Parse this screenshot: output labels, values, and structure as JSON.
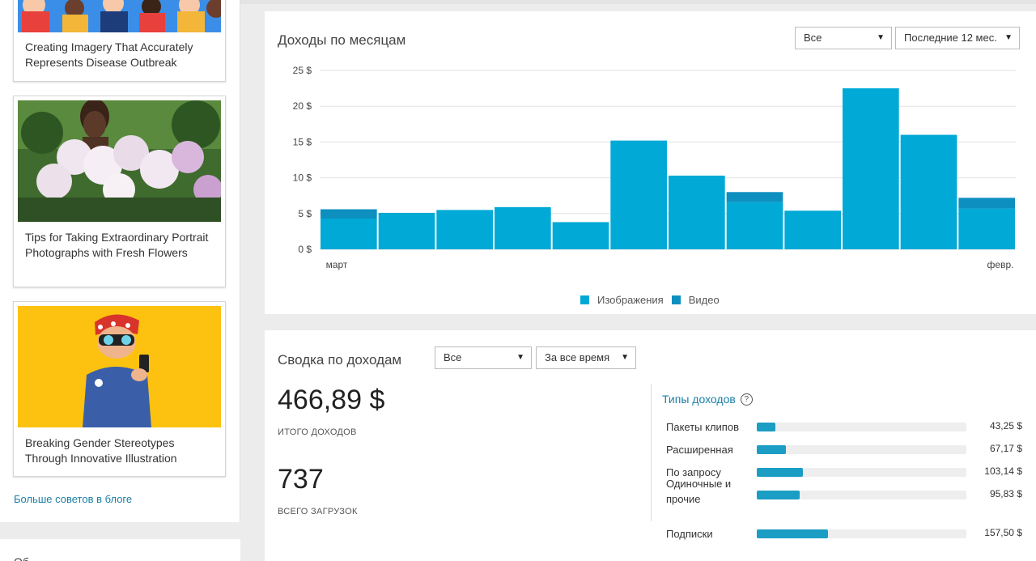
{
  "blog": {
    "cards": [
      {
        "title": "Creating Imagery That Accurately Represents Disease Outbreak"
      },
      {
        "title": "Tips for Taking Extraordinary Portrait Photographs with Fresh Flowers"
      },
      {
        "title": "Breaking Gender Stereotypes Through Innovative Illustration"
      }
    ],
    "more_link": "Больше советов в блоге",
    "next_section_title": "Об"
  },
  "monthly": {
    "title": "Доходы по месяцам",
    "filter_type": "Все",
    "filter_period": "Последние 12 мес.",
    "legend": [
      {
        "label": "Изображения",
        "color": "#00a9d6"
      },
      {
        "label": "Видео",
        "color": "#0d8fbf"
      }
    ]
  },
  "chart_data": {
    "type": "bar",
    "stacked": true,
    "categories": [
      "март",
      "",
      "",
      "",
      "",
      "",
      "",
      "",
      "",
      "",
      "",
      "февр."
    ],
    "y_ticks": [
      "0 $",
      "5 $",
      "10 $",
      "15 $",
      "20 $",
      "25 $"
    ],
    "ylim": [
      0,
      25
    ],
    "grid": true,
    "legend_position": "bottom",
    "series": [
      {
        "name": "Изображения",
        "values": [
          4.3,
          5.1,
          5.5,
          5.9,
          3.8,
          15.2,
          10.3,
          6.6,
          5.4,
          22.5,
          16.0,
          5.7
        ]
      },
      {
        "name": "Видео",
        "values": [
          1.3,
          0,
          0,
          0,
          0,
          0,
          0,
          1.4,
          0,
          0,
          0,
          1.5
        ]
      }
    ]
  },
  "summary": {
    "title": "Сводка по доходам",
    "filter_type": "Все",
    "filter_period": "За все время",
    "total_earnings": "466,89 $",
    "total_earnings_label": "ИТОГО ДОХОДОВ",
    "total_downloads": "737",
    "total_downloads_label": "ВСЕГО ЗАГРУЗОК",
    "types_title": "Типы доходов",
    "types": [
      {
        "label": "Пакеты клипов",
        "value": "43,25 $",
        "fraction": 0.09
      },
      {
        "label": "Расширенная",
        "value": "67,17 $",
        "fraction": 0.14
      },
      {
        "label": "По запросу",
        "value": "103,14 $",
        "fraction": 0.22
      },
      {
        "label": "Одиночные и прочие",
        "value": "95,83 $",
        "fraction": 0.205
      },
      {
        "label": "Подписки",
        "value": "157,50 $",
        "fraction": 0.34
      }
    ]
  }
}
